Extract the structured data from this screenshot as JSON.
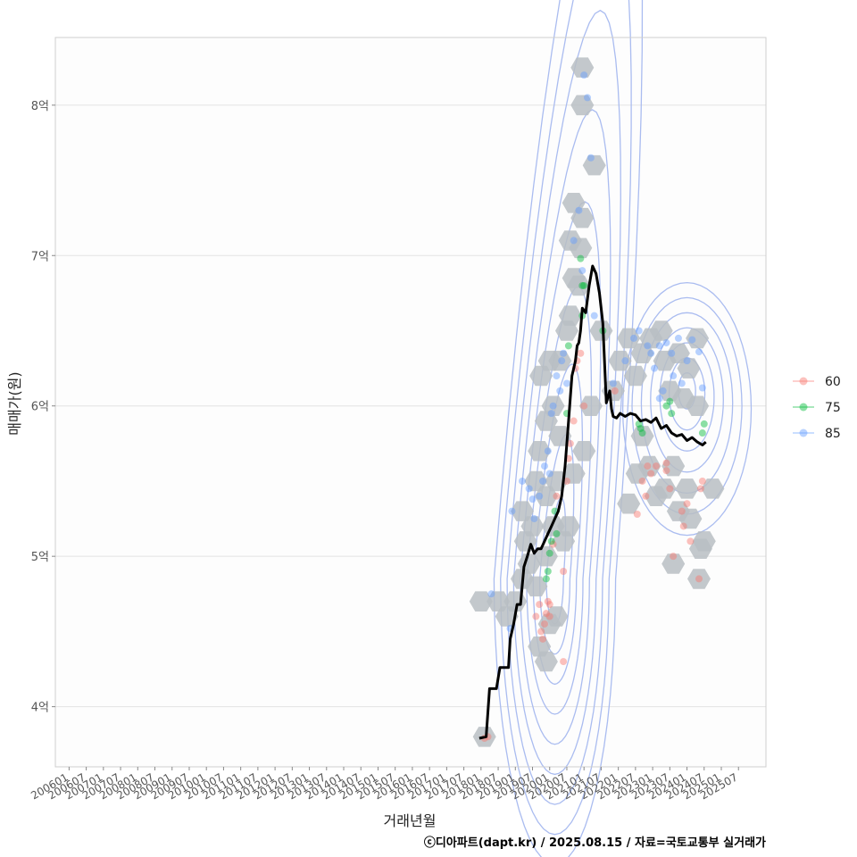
{
  "chart_data": {
    "type": "scatter",
    "xlabel": "거래년월",
    "ylabel": "매매가(원)",
    "caption": "ⓒ디아파트(dapt.kr) / 2025.08.15 / 자료=국토교통부 실거래가",
    "ylim": [
      3.6,
      8.45
    ],
    "xlim": [
      2005.6,
      2026.3
    ],
    "y_ticks": [
      {
        "value": 4,
        "label": "4억"
      },
      {
        "value": 5,
        "label": "5억"
      },
      {
        "value": 6,
        "label": "6억"
      },
      {
        "value": 7,
        "label": "7억"
      },
      {
        "value": 8,
        "label": "8억"
      }
    ],
    "x_ticks": [
      "200601",
      "200607",
      "200701",
      "200707",
      "200801",
      "200807",
      "200901",
      "200907",
      "201001",
      "201007",
      "201101",
      "201107",
      "201201",
      "201207",
      "201301",
      "201307",
      "201401",
      "201407",
      "201501",
      "201507",
      "201601",
      "201607",
      "201701",
      "201707",
      "201801",
      "201807",
      "201901",
      "201907",
      "202001",
      "202007",
      "202101",
      "202107",
      "202201",
      "202207",
      "202301",
      "202307",
      "202401",
      "202407",
      "202501",
      "202507"
    ],
    "legend": {
      "position": "right",
      "entries": [
        {
          "name": "60",
          "color": "#F8766D"
        },
        {
          "name": "75",
          "color": "#00BA38"
        },
        {
          "name": "85",
          "color": "#619CFF"
        }
      ]
    },
    "colors": {
      "hexbin": "#b9bec3",
      "contour": "#aabcf0",
      "trend": "#000000",
      "grid": "#e3e3e3",
      "panel_border": "#cfcfcf"
    },
    "hexbins": [
      [
        2018.1,
        3.8
      ],
      [
        2018.0,
        4.7
      ],
      [
        2018.5,
        4.7
      ],
      [
        2018.75,
        4.6
      ],
      [
        2019.0,
        4.7
      ],
      [
        2019.2,
        4.85
      ],
      [
        2019.4,
        4.95
      ],
      [
        2019.6,
        4.8
      ],
      [
        2019.7,
        4.4
      ],
      [
        2019.9,
        4.3
      ],
      [
        2020.2,
        4.6
      ],
      [
        2020.0,
        4.55
      ],
      [
        2019.2,
        5.3
      ],
      [
        2019.3,
        5.1
      ],
      [
        2019.5,
        5.2
      ],
      [
        2019.6,
        5.5
      ],
      [
        2019.9,
        5.0
      ],
      [
        2019.9,
        5.4
      ],
      [
        2020.1,
        5.2
      ],
      [
        2020.2,
        5.5
      ],
      [
        2020.4,
        5.1
      ],
      [
        2019.7,
        5.7
      ],
      [
        2019.9,
        5.9
      ],
      [
        2020.1,
        6.0
      ],
      [
        2020.3,
        5.8
      ],
      [
        2019.75,
        6.2
      ],
      [
        2020.0,
        6.3
      ],
      [
        2020.3,
        6.3
      ],
      [
        2020.5,
        6.5
      ],
      [
        2020.6,
        6.6
      ],
      [
        2020.7,
        6.85
      ],
      [
        2020.85,
        6.8
      ],
      [
        2020.9,
        7.05
      ],
      [
        2020.6,
        7.1
      ],
      [
        2020.7,
        7.35
      ],
      [
        2020.95,
        7.25
      ],
      [
        2021.3,
        7.6
      ],
      [
        2020.95,
        8.0
      ],
      [
        2020.95,
        8.25
      ],
      [
        2021.5,
        6.5
      ],
      [
        2021.85,
        6.1
      ],
      [
        2022.05,
        6.3
      ],
      [
        2022.3,
        6.45
      ],
      [
        2022.5,
        6.2
      ],
      [
        2022.7,
        6.35
      ],
      [
        2022.95,
        6.45
      ],
      [
        2023.25,
        6.5
      ],
      [
        2023.35,
        6.3
      ],
      [
        2023.5,
        6.1
      ],
      [
        2023.75,
        6.35
      ],
      [
        2023.9,
        6.05
      ],
      [
        2024.05,
        6.25
      ],
      [
        2024.3,
        6.45
      ],
      [
        2024.3,
        6.0
      ],
      [
        2022.7,
        5.8
      ],
      [
        2022.55,
        5.55
      ],
      [
        2022.9,
        5.6
      ],
      [
        2023.1,
        5.4
      ],
      [
        2023.35,
        5.45
      ],
      [
        2023.6,
        5.6
      ],
      [
        2023.75,
        5.3
      ],
      [
        2024.0,
        5.45
      ],
      [
        2024.1,
        5.25
      ],
      [
        2024.5,
        5.1
      ],
      [
        2022.3,
        5.35
      ],
      [
        2023.6,
        4.95
      ],
      [
        2024.35,
        4.85
      ],
      [
        2024.4,
        5.05
      ],
      [
        2024.75,
        5.45
      ],
      [
        2021.2,
        6.0
      ],
      [
        2021.0,
        5.7
      ],
      [
        2020.7,
        5.55
      ],
      [
        2020.55,
        5.2
      ]
    ],
    "points": [
      {
        "s": "60",
        "x": 2018.1,
        "y": 3.79
      },
      {
        "s": "60",
        "x": 2018.2,
        "y": 3.8
      },
      {
        "s": "60",
        "x": 2019.75,
        "y": 4.5
      },
      {
        "s": "60",
        "x": 2019.8,
        "y": 4.45
      },
      {
        "s": "60",
        "x": 2019.85,
        "y": 4.55
      },
      {
        "s": "60",
        "x": 2019.9,
        "y": 4.62
      },
      {
        "s": "60",
        "x": 2019.95,
        "y": 4.7
      },
      {
        "s": "60",
        "x": 2020.0,
        "y": 4.68
      },
      {
        "s": "60",
        "x": 2019.6,
        "y": 4.6
      },
      {
        "s": "60",
        "x": 2019.7,
        "y": 4.68
      },
      {
        "s": "60",
        "x": 2020.0,
        "y": 4.6
      },
      {
        "s": "60",
        "x": 2020.4,
        "y": 4.3
      },
      {
        "s": "60",
        "x": 2020.4,
        "y": 4.9
      },
      {
        "s": "60",
        "x": 2020.1,
        "y": 5.08
      },
      {
        "s": "60",
        "x": 2020.5,
        "y": 5.5
      },
      {
        "s": "60",
        "x": 2020.55,
        "y": 5.65
      },
      {
        "s": "60",
        "x": 2020.6,
        "y": 5.75
      },
      {
        "s": "60",
        "x": 2020.7,
        "y": 5.9
      },
      {
        "s": "60",
        "x": 2020.8,
        "y": 6.3
      },
      {
        "s": "60",
        "x": 2020.75,
        "y": 6.25
      },
      {
        "s": "60",
        "x": 2020.9,
        "y": 6.35
      },
      {
        "s": "60",
        "x": 2021.0,
        "y": 6.0
      },
      {
        "s": "60",
        "x": 2021.9,
        "y": 6.1
      },
      {
        "s": "60",
        "x": 2020.2,
        "y": 5.4
      },
      {
        "s": "60",
        "x": 2022.55,
        "y": 5.28
      },
      {
        "s": "60",
        "x": 2022.7,
        "y": 5.5
      },
      {
        "s": "60",
        "x": 2022.85,
        "y": 5.6
      },
      {
        "s": "60",
        "x": 2022.95,
        "y": 5.55
      },
      {
        "s": "60",
        "x": 2023.1,
        "y": 5.6
      },
      {
        "s": "60",
        "x": 2023.4,
        "y": 5.57
      },
      {
        "s": "60",
        "x": 2023.5,
        "y": 5.45
      },
      {
        "s": "60",
        "x": 2023.85,
        "y": 5.3
      },
      {
        "s": "60",
        "x": 2023.9,
        "y": 5.2
      },
      {
        "s": "60",
        "x": 2024.0,
        "y": 5.35
      },
      {
        "s": "60",
        "x": 2024.1,
        "y": 5.1
      },
      {
        "s": "60",
        "x": 2023.6,
        "y": 5.0
      },
      {
        "s": "60",
        "x": 2024.35,
        "y": 4.85
      },
      {
        "s": "60",
        "x": 2024.4,
        "y": 5.45
      },
      {
        "s": "60",
        "x": 2024.45,
        "y": 5.5
      },
      {
        "s": "60",
        "x": 2023.4,
        "y": 5.62
      },
      {
        "s": "60",
        "x": 2022.8,
        "y": 5.4
      },
      {
        "s": "75",
        "x": 2019.9,
        "y": 4.85
      },
      {
        "s": "75",
        "x": 2019.95,
        "y": 4.9
      },
      {
        "s": "75",
        "x": 2020.0,
        "y": 5.02
      },
      {
        "s": "75",
        "x": 2020.05,
        "y": 5.1
      },
      {
        "s": "75",
        "x": 2020.2,
        "y": 5.15
      },
      {
        "s": "75",
        "x": 2020.15,
        "y": 5.3
      },
      {
        "s": "75",
        "x": 2020.5,
        "y": 5.95
      },
      {
        "s": "75",
        "x": 2020.55,
        "y": 6.4
      },
      {
        "s": "75",
        "x": 2020.9,
        "y": 6.98
      },
      {
        "s": "75",
        "x": 2020.95,
        "y": 6.8
      },
      {
        "s": "75",
        "x": 2021.0,
        "y": 6.8
      },
      {
        "s": "75",
        "x": 2020.95,
        "y": 6.6
      },
      {
        "s": "75",
        "x": 2021.55,
        "y": 6.5
      },
      {
        "s": "75",
        "x": 2022.6,
        "y": 5.88
      },
      {
        "s": "75",
        "x": 2022.65,
        "y": 5.85
      },
      {
        "s": "75",
        "x": 2022.7,
        "y": 5.82
      },
      {
        "s": "75",
        "x": 2023.4,
        "y": 6.0
      },
      {
        "s": "75",
        "x": 2023.5,
        "y": 6.03
      },
      {
        "s": "75",
        "x": 2023.55,
        "y": 5.95
      },
      {
        "s": "75",
        "x": 2024.5,
        "y": 5.88
      },
      {
        "s": "75",
        "x": 2024.45,
        "y": 5.82
      },
      {
        "s": "85",
        "x": 2018.3,
        "y": 4.75
      },
      {
        "s": "85",
        "x": 2018.85,
        "y": 4.52
      },
      {
        "s": "85",
        "x": 2018.9,
        "y": 5.3
      },
      {
        "s": "85",
        "x": 2019.2,
        "y": 5.5
      },
      {
        "s": "85",
        "x": 2019.4,
        "y": 5.45
      },
      {
        "s": "85",
        "x": 2019.5,
        "y": 5.38
      },
      {
        "s": "85",
        "x": 2019.55,
        "y": 5.25
      },
      {
        "s": "85",
        "x": 2019.7,
        "y": 5.4
      },
      {
        "s": "85",
        "x": 2019.8,
        "y": 5.5
      },
      {
        "s": "85",
        "x": 2019.85,
        "y": 5.6
      },
      {
        "s": "85",
        "x": 2019.95,
        "y": 5.7
      },
      {
        "s": "85",
        "x": 2020.0,
        "y": 5.55
      },
      {
        "s": "85",
        "x": 2020.05,
        "y": 5.95
      },
      {
        "s": "85",
        "x": 2020.1,
        "y": 6.0
      },
      {
        "s": "85",
        "x": 2020.2,
        "y": 6.2
      },
      {
        "s": "85",
        "x": 2020.3,
        "y": 6.1
      },
      {
        "s": "85",
        "x": 2020.35,
        "y": 6.3
      },
      {
        "s": "85",
        "x": 2020.4,
        "y": 6.35
      },
      {
        "s": "85",
        "x": 2020.5,
        "y": 6.15
      },
      {
        "s": "85",
        "x": 2020.7,
        "y": 7.1
      },
      {
        "s": "85",
        "x": 2020.85,
        "y": 7.3
      },
      {
        "s": "85",
        "x": 2020.95,
        "y": 6.9
      },
      {
        "s": "85",
        "x": 2021.0,
        "y": 8.2
      },
      {
        "s": "85",
        "x": 2021.1,
        "y": 8.05
      },
      {
        "s": "85",
        "x": 2021.2,
        "y": 7.65
      },
      {
        "s": "85",
        "x": 2021.3,
        "y": 6.6
      },
      {
        "s": "85",
        "x": 2021.85,
        "y": 6.15
      },
      {
        "s": "85",
        "x": 2022.2,
        "y": 6.3
      },
      {
        "s": "85",
        "x": 2022.45,
        "y": 6.45
      },
      {
        "s": "85",
        "x": 2022.6,
        "y": 6.5
      },
      {
        "s": "85",
        "x": 2022.85,
        "y": 6.4
      },
      {
        "s": "85",
        "x": 2022.95,
        "y": 6.35
      },
      {
        "s": "85",
        "x": 2023.05,
        "y": 6.25
      },
      {
        "s": "85",
        "x": 2023.2,
        "y": 6.4
      },
      {
        "s": "85",
        "x": 2023.3,
        "y": 6.1
      },
      {
        "s": "85",
        "x": 2023.4,
        "y": 6.42
      },
      {
        "s": "85",
        "x": 2023.55,
        "y": 6.35
      },
      {
        "s": "85",
        "x": 2023.6,
        "y": 6.2
      },
      {
        "s": "85",
        "x": 2023.75,
        "y": 6.45
      },
      {
        "s": "85",
        "x": 2023.85,
        "y": 6.15
      },
      {
        "s": "85",
        "x": 2024.0,
        "y": 6.3
      },
      {
        "s": "85",
        "x": 2024.15,
        "y": 6.44
      },
      {
        "s": "85",
        "x": 2024.35,
        "y": 6.36
      },
      {
        "s": "85",
        "x": 2024.45,
        "y": 6.12
      },
      {
        "s": "85",
        "x": 2023.2,
        "y": 6.05
      }
    ],
    "trend": {
      "name": "median",
      "x": [
        2017.95,
        2018.15,
        2018.25,
        2018.45,
        2018.55,
        2018.8,
        2018.85,
        2018.95,
        2019.05,
        2019.15,
        2019.25,
        2019.35,
        2019.45,
        2019.55,
        2019.65,
        2019.75,
        2019.85,
        2019.95,
        2020.05,
        2020.15,
        2020.25,
        2020.35,
        2020.45,
        2020.55,
        2020.6,
        2020.65,
        2020.7,
        2020.75,
        2020.8,
        2020.85,
        2020.9,
        2020.95,
        2021.05,
        2021.15,
        2021.25,
        2021.35,
        2021.45,
        2021.55,
        2021.65,
        2021.75,
        2021.8,
        2021.85,
        2021.95,
        2022.05,
        2022.2,
        2022.35,
        2022.5,
        2022.65,
        2022.8,
        2022.95,
        2023.1,
        2023.25,
        2023.4,
        2023.55,
        2023.7,
        2023.85,
        2024.0,
        2024.15,
        2024.3,
        2024.45,
        2024.55
      ],
      "y": [
        3.79,
        3.8,
        4.12,
        4.12,
        4.26,
        4.26,
        4.45,
        4.55,
        4.68,
        4.68,
        4.93,
        5.0,
        5.08,
        5.02,
        5.05,
        5.05,
        5.1,
        5.15,
        5.2,
        5.25,
        5.3,
        5.4,
        5.6,
        5.9,
        6.05,
        6.2,
        6.25,
        6.3,
        6.4,
        6.42,
        6.5,
        6.65,
        6.62,
        6.8,
        6.93,
        6.88,
        6.75,
        6.55,
        6.02,
        6.1,
        5.98,
        5.93,
        5.92,
        5.95,
        5.93,
        5.95,
        5.94,
        5.9,
        5.91,
        5.89,
        5.92,
        5.85,
        5.87,
        5.82,
        5.8,
        5.81,
        5.77,
        5.79,
        5.76,
        5.74,
        5.76
      ]
    }
  }
}
